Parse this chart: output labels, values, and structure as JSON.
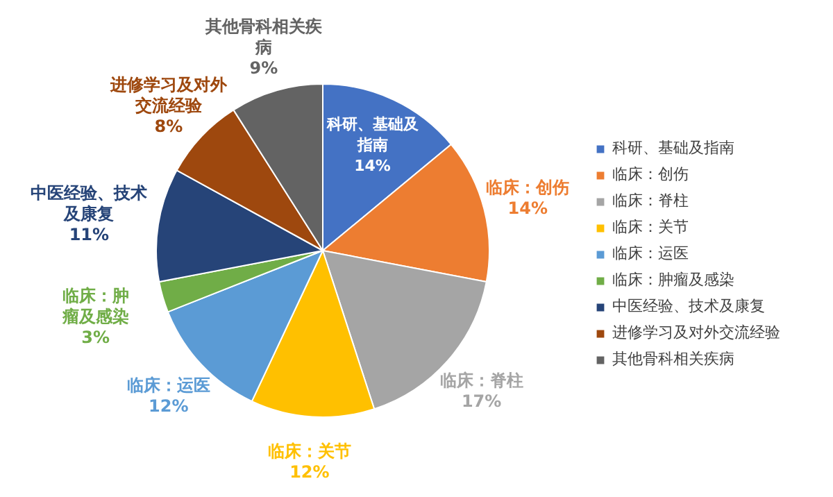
{
  "chart_data": {
    "type": "pie",
    "categories": [
      "科研、基础及指南",
      "临床：创伤",
      "临床：脊柱",
      "临床：关节",
      "临床：运医",
      "临床：肿瘤及感染",
      "中医经验、技术及康复",
      "进修学习及对外交流经验",
      "其他骨科相关疾病"
    ],
    "values": [
      14,
      14,
      17,
      12,
      12,
      3,
      11,
      8,
      9
    ],
    "colors": [
      "#4472c4",
      "#ed7d31",
      "#a5a5a5",
      "#ffc000",
      "#5b9bd5",
      "#70ad47",
      "#264478",
      "#9e480e",
      "#636363"
    ],
    "value_labels": [
      [
        "科研、基础及",
        "指南",
        "14%"
      ],
      [
        "临床：创伤",
        "14%"
      ],
      [
        "临床：脊柱",
        "17%"
      ],
      [
        "临床：关节",
        "12%"
      ],
      [
        "临床：运医",
        "12%"
      ],
      [
        "临床：肿",
        "瘤及感染",
        "3%"
      ],
      [
        "中医经验、技术",
        "及康复",
        "11%"
      ],
      [
        "进修学习及对外",
        "交流经验",
        "8%"
      ],
      [
        "其他骨科相关疾",
        "病",
        "9%"
      ]
    ],
    "legend": "right"
  }
}
